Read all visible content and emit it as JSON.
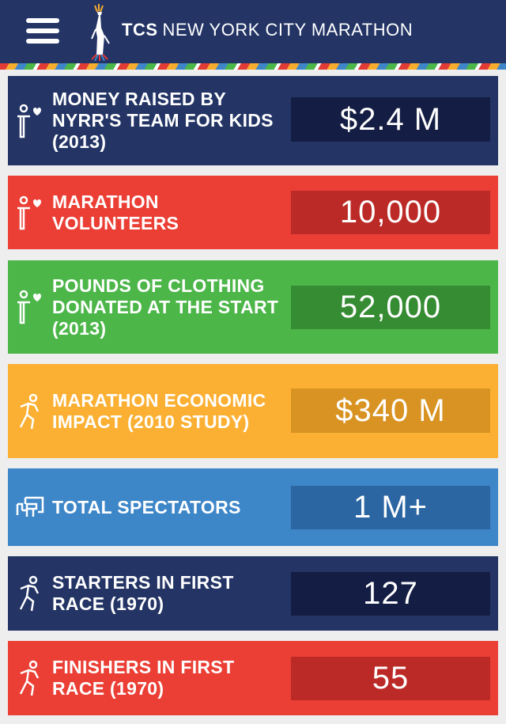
{
  "header": {
    "brand_bold": "TCS",
    "brand_rest": "NEW YORK CITY MARATHON",
    "menu_icon": "hamburger-menu-icon",
    "logo_icon": "statue-of-liberty-logo-icon"
  },
  "stats": [
    {
      "label": "MONEY RAISED BY NYRR'S TEAM FOR KIDS (2013)",
      "value": "$2.4 M",
      "icon": "volunteer-heart-icon",
      "color": "#233465"
    },
    {
      "label": "MARATHON VOLUNTEERS",
      "value": "10,000",
      "icon": "volunteer-heart-icon",
      "color": "#eb3f35"
    },
    {
      "label": "POUNDS OF CLOTHING DONATED AT THE START (2013)",
      "value": "52,000",
      "icon": "volunteer-heart-icon",
      "color": "#4cb649"
    },
    {
      "label": "MARATHON ECONOMIC IMPACT (2010 STUDY)",
      "value": "$340 M",
      "icon": "runner-icon",
      "color": "#fbb033"
    },
    {
      "label": "TOTAL SPECTATORS",
      "value": "1 M+",
      "icon": "spectator-icon",
      "color": "#3d86c8"
    },
    {
      "label": "STARTERS IN FIRST RACE (1970)",
      "value": "127",
      "icon": "runner-icon",
      "color": "#233465"
    },
    {
      "label": "FINISHERS IN FIRST RACE (1970)",
      "value": "55",
      "icon": "runner-icon",
      "color": "#eb3f35"
    }
  ]
}
